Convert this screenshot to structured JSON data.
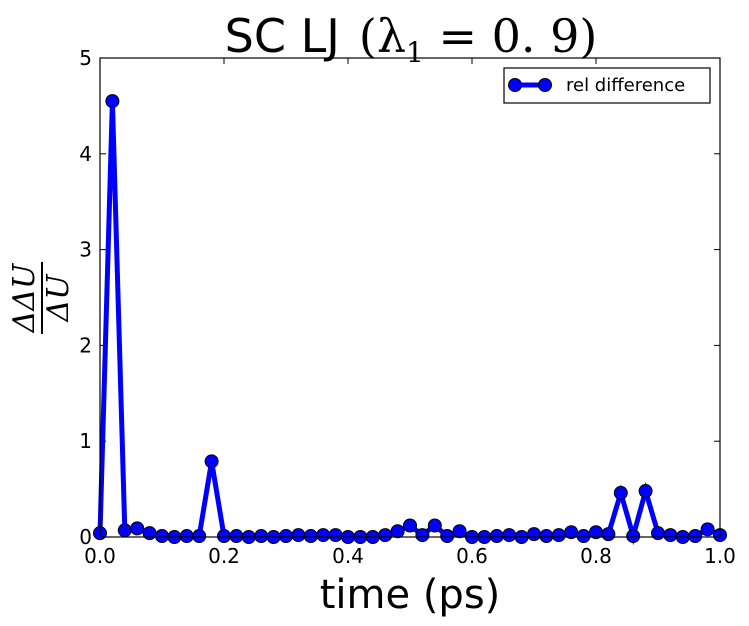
{
  "chart_data": {
    "type": "line",
    "title": {
      "prefix": "SC LJ",
      "math_open": "(λ",
      "math_sub": "1",
      "math_rest": " = 0. 9)"
    },
    "xlabel": "time (ps)",
    "ylabel": {
      "numerator": "ΔΔU",
      "denominator": "ΔU"
    },
    "xlim": [
      0.0,
      1.0
    ],
    "ylim": [
      0,
      5
    ],
    "x_ticks": [
      0.0,
      0.2,
      0.4,
      0.6,
      0.8,
      1.0
    ],
    "x_tick_labels": [
      "0.0",
      "0.2",
      "0.4",
      "0.6",
      "0.8",
      "1.0"
    ],
    "y_ticks": [
      0,
      1,
      2,
      3,
      4,
      5
    ],
    "y_tick_labels": [
      "0",
      "1",
      "2",
      "3",
      "4",
      "5"
    ],
    "grid": false,
    "legend_position": "top-right",
    "series": [
      {
        "name": "rel difference",
        "color": "#0000ff",
        "x": [
          0.0,
          0.02,
          0.04,
          0.06,
          0.08,
          0.1,
          0.12,
          0.14,
          0.16,
          0.18,
          0.2,
          0.22,
          0.24,
          0.26,
          0.28,
          0.3,
          0.32,
          0.34,
          0.36,
          0.38,
          0.4,
          0.42,
          0.44,
          0.46,
          0.48,
          0.5,
          0.52,
          0.54,
          0.56,
          0.58,
          0.6,
          0.62,
          0.64,
          0.66,
          0.68,
          0.7,
          0.72,
          0.74,
          0.76,
          0.78,
          0.8,
          0.82,
          0.84,
          0.86,
          0.88,
          0.9,
          0.92,
          0.94,
          0.96,
          0.98,
          1.0
        ],
        "y": [
          0.04,
          4.55,
          0.07,
          0.09,
          0.04,
          0.01,
          0.0,
          0.01,
          0.01,
          0.79,
          0.01,
          0.01,
          0.0,
          0.01,
          0.0,
          0.01,
          0.02,
          0.01,
          0.02,
          0.02,
          0.0,
          0.0,
          0.0,
          0.02,
          0.06,
          0.12,
          0.02,
          0.12,
          0.01,
          0.06,
          0.0,
          0.0,
          0.01,
          0.02,
          0.0,
          0.03,
          0.01,
          0.02,
          0.05,
          0.01,
          0.05,
          0.03,
          0.46,
          0.01,
          0.48,
          0.04,
          0.02,
          0.0,
          0.01,
          0.08,
          0.02
        ]
      }
    ]
  }
}
